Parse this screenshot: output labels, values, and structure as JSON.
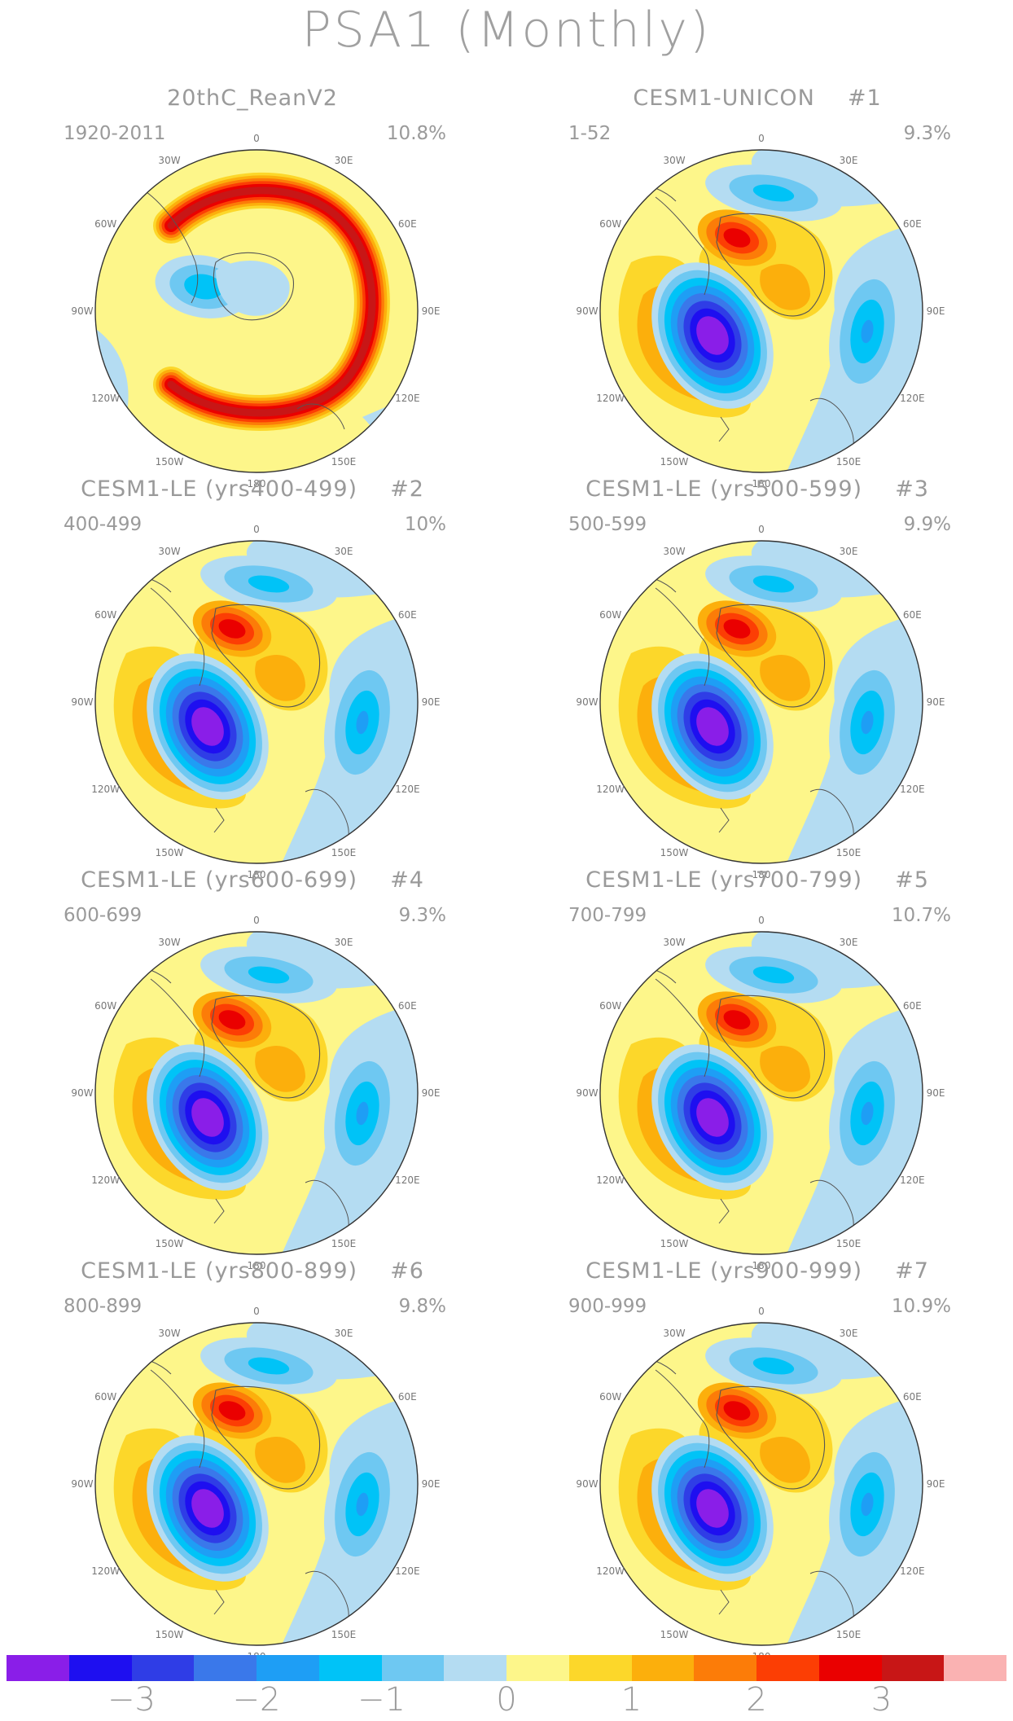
{
  "title": "PSA1 (Monthly)",
  "lon_labels": [
    "0",
    "30E",
    "60E",
    "90E",
    "120E",
    "150E",
    "180",
    "150W",
    "120W",
    "90W",
    "60W",
    "30W"
  ],
  "panels": [
    {
      "title": "20thC_ReanV2",
      "num": "",
      "years": "1920-2011",
      "pct": "10.8%",
      "pattern": "reanalysis"
    },
    {
      "title": "CESM1-UNICON",
      "num": "#1",
      "years": "1-52",
      "pct": "9.3%",
      "pattern": "model"
    },
    {
      "title": "CESM1-LE (yrs400-499)",
      "num": "#2",
      "years": "400-499",
      "pct": "10%",
      "pattern": "model"
    },
    {
      "title": "CESM1-LE (yrs500-599)",
      "num": "#3",
      "years": "500-599",
      "pct": "9.9%",
      "pattern": "model"
    },
    {
      "title": "CESM1-LE (yrs600-699)",
      "num": "#4",
      "years": "600-699",
      "pct": "9.3%",
      "pattern": "model"
    },
    {
      "title": "CESM1-LE (yrs700-799)",
      "num": "#5",
      "years": "700-799",
      "pct": "10.7%",
      "pattern": "model"
    },
    {
      "title": "CESM1-LE (yrs800-899)",
      "num": "#6",
      "years": "800-899",
      "pct": "9.8%",
      "pattern": "model"
    },
    {
      "title": "CESM1-LE (yrs900-999)",
      "num": "#7",
      "years": "900-999",
      "pct": "10.9%",
      "pattern": "model"
    }
  ],
  "colorbar": {
    "colors": [
      "#8a1ee8",
      "#1e0ff0",
      "#2f3de6",
      "#3a78ea",
      "#1e9ef5",
      "#00c3f7",
      "#6ec8f2",
      "#b4dcf2",
      "#fdf68a",
      "#fcd72a",
      "#fcaf0c",
      "#fc7c08",
      "#fc3e04",
      "#ea0000",
      "#c81616",
      "#fab2b2"
    ],
    "labels": [
      "−3",
      "−2",
      "−1",
      "0",
      "1",
      "2",
      "3"
    ]
  }
}
